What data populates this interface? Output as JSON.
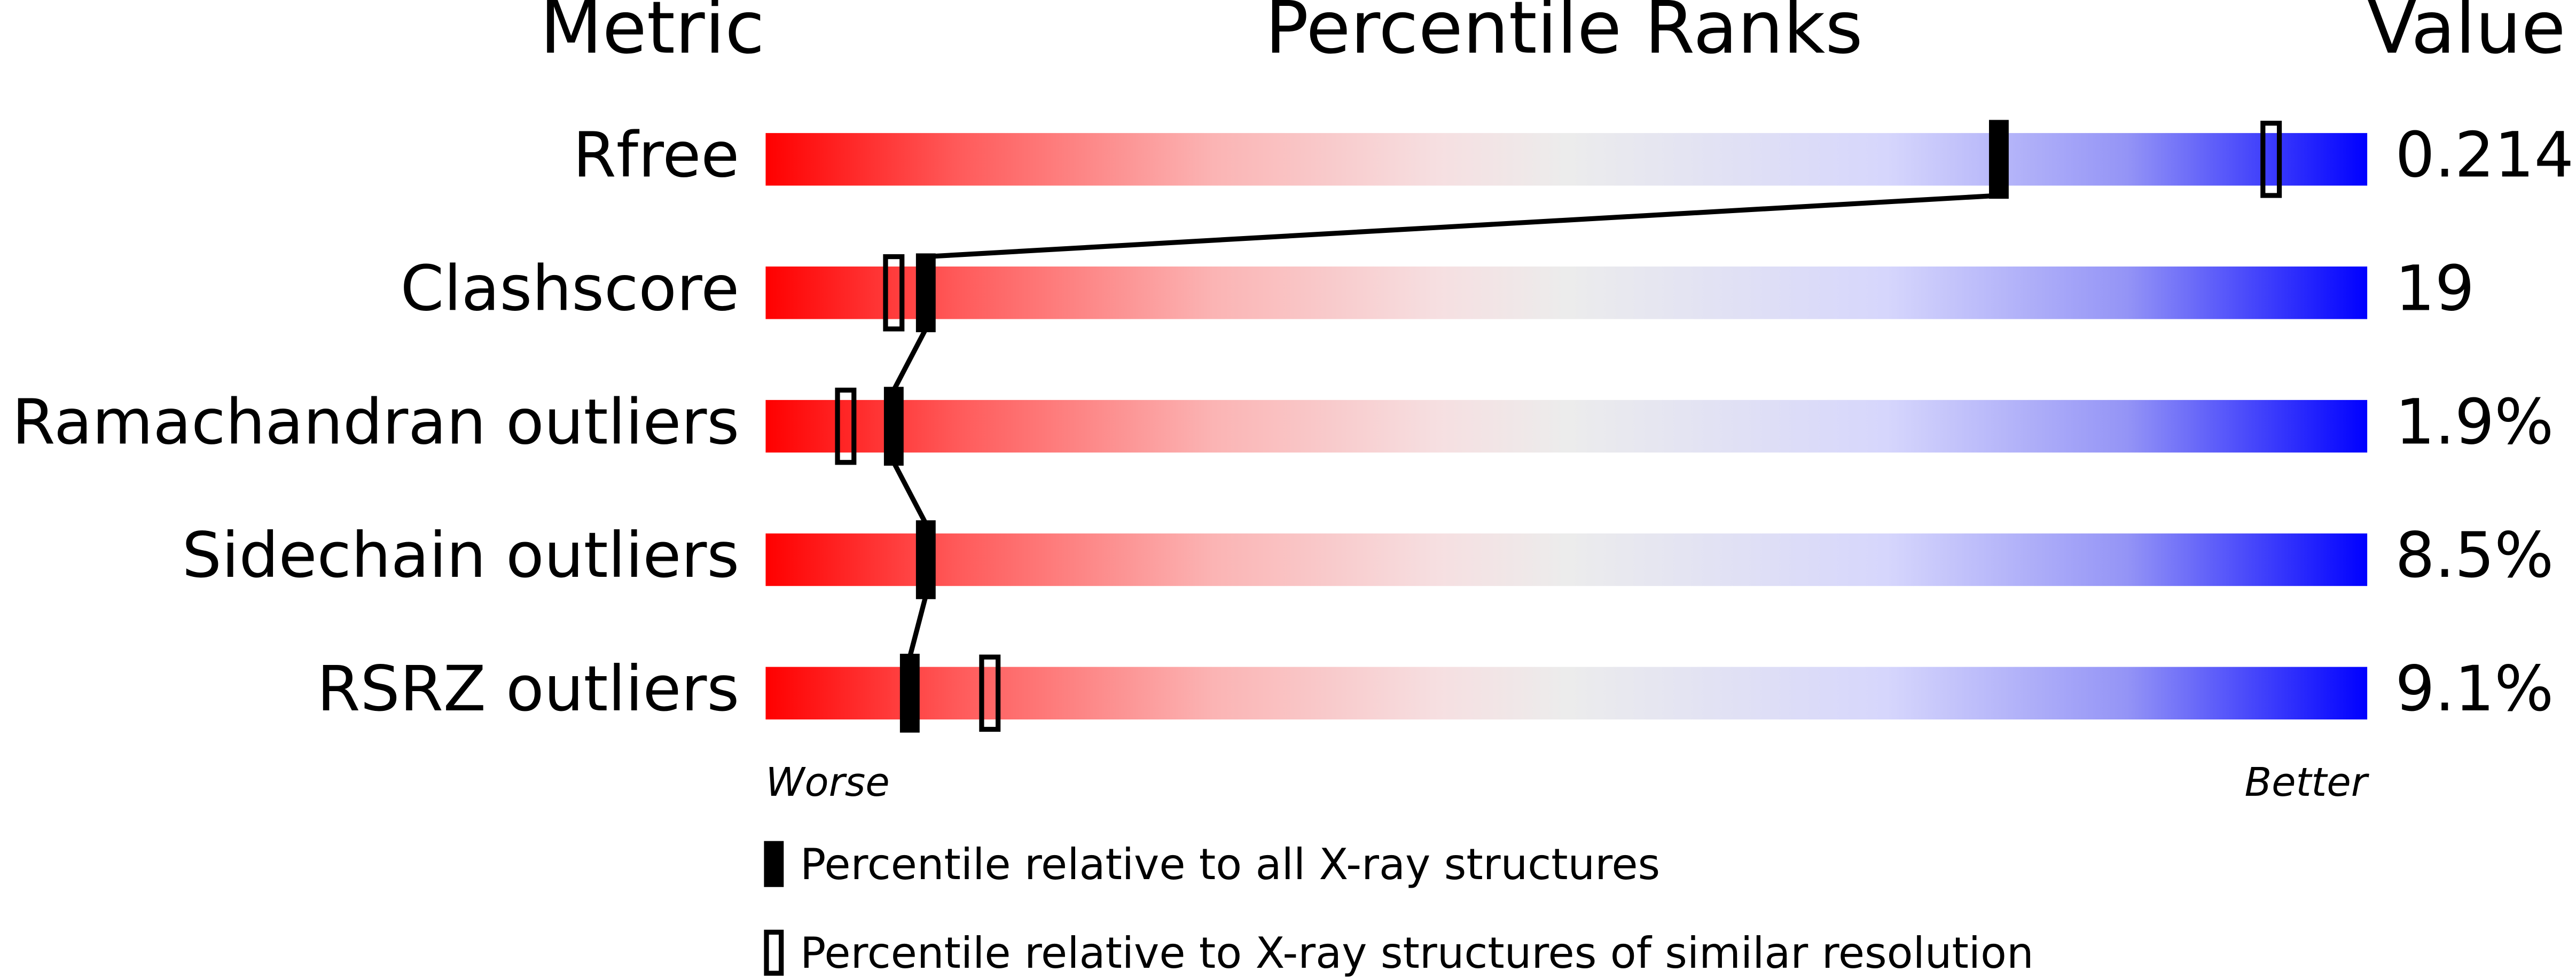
{
  "chart_data": {
    "type": "percentile-slider",
    "headers": [
      "Metric",
      "Percentile Ranks",
      "Value"
    ],
    "categories": [
      "Rfree",
      "Clashscore",
      "Ramachandran outliers",
      "Sidechain outliers",
      "RSRZ outliers"
    ],
    "value_column": [
      "0.214",
      "19",
      "1.9%",
      "8.5%",
      "9.1%"
    ],
    "series": [
      {
        "name": "Percentile relative to all X-ray structures",
        "color": "#000000",
        "values": [
          77,
          10,
          8,
          10,
          9
        ]
      },
      {
        "name": "Percentile relative to X-ray structures of similar resolution",
        "color": "#000000",
        "values": [
          94,
          8,
          5,
          null,
          14
        ]
      }
    ],
    "xlim": [
      0,
      100
    ],
    "worse_label": "Worse",
    "better_label": "Better"
  }
}
